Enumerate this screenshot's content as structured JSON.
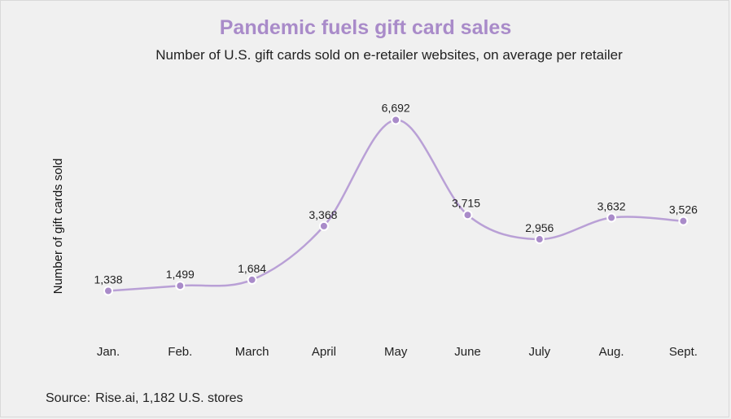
{
  "header": {
    "title": "Pandemic fuels gift card sales",
    "subtitle": "Number of U.S. gift cards sold on e-retailer websites, on average per retailer"
  },
  "footer": {
    "source_label": "Source:",
    "source_text": "Rise.ai,  1,182 U.S. stores"
  },
  "colors": {
    "accent": "#a98bc9",
    "background": "#f0f0f0",
    "text": "#222222"
  },
  "chart_data": {
    "type": "line",
    "title": "Pandemic fuels gift card sales",
    "subtitle": "Number of U.S. gift cards sold on e-retailer websites, on average per retailer",
    "xlabel": "",
    "ylabel": "Number of gift cards sold",
    "categories": [
      "Jan.",
      "Feb.",
      "March",
      "April",
      "May",
      "June",
      "July",
      "Aug.",
      "Sept."
    ],
    "values": [
      1338,
      1499,
      1684,
      3368,
      6692,
      3715,
      2956,
      3632,
      3526
    ],
    "data_labels": [
      "1,338",
      "1,499",
      "1,684",
      "3,368",
      "6,692",
      "3,715",
      "2,956",
      "3,632",
      "3,526"
    ],
    "ylim": [
      0,
      7000
    ],
    "grid": false,
    "legend": "none"
  }
}
